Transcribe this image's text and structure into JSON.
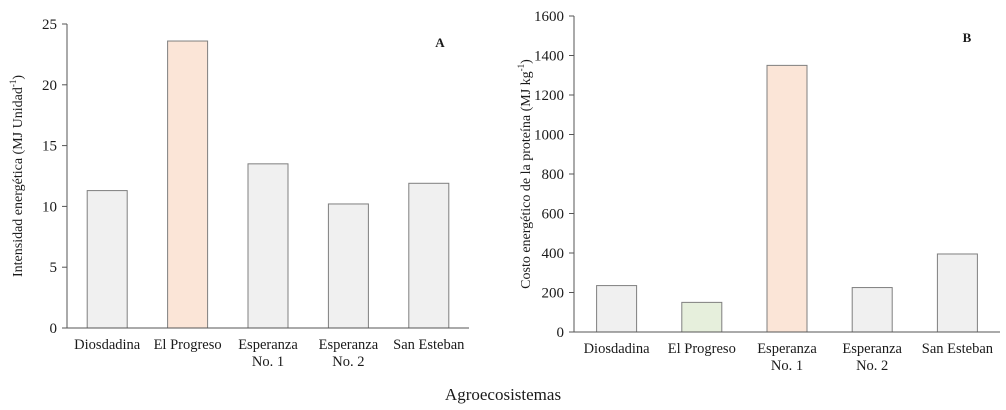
{
  "chart_data": [
    {
      "type": "bar",
      "panel_label": "A",
      "categories": [
        [
          "Diosdadina"
        ],
        [
          "El Progreso"
        ],
        [
          "Esperanza",
          "No. 1"
        ],
        [
          "Esperanza",
          "No. 2"
        ],
        [
          "San Esteban"
        ]
      ],
      "values": [
        11.3,
        23.6,
        13.5,
        10.2,
        11.9
      ],
      "bar_colors": [
        "#f0f0f0",
        "#fbe5d7",
        "#f0f0f0",
        "#f0f0f0",
        "#f0f0f0"
      ],
      "ylabel": "Intensidad energética (MJ Unidad-1)",
      "ylabel_parts": {
        "main": "Intensidad energética (MJ Unidad",
        "sup": "-1",
        "close": ")"
      },
      "ylim": [
        0,
        25
      ],
      "yticks": [
        0,
        5,
        10,
        15,
        20,
        25
      ],
      "grid": false
    },
    {
      "type": "bar",
      "panel_label": "B",
      "categories": [
        [
          "Diosdadina"
        ],
        [
          "El Progreso"
        ],
        [
          "Esperanza",
          "No. 1"
        ],
        [
          "Esperanza",
          "No. 2"
        ],
        [
          "San Esteban"
        ]
      ],
      "values": [
        235,
        150,
        1350,
        225,
        395
      ],
      "bar_colors": [
        "#f0f0f0",
        "#e6efdc",
        "#fbe5d7",
        "#f0f0f0",
        "#f0f0f0"
      ],
      "ylabel": "Costo energético de la proteína (MJ kg-1)",
      "ylabel_parts": {
        "main": "Costo energético de la proteína (MJ kg",
        "sup": "-1",
        "close": ")"
      },
      "ylim": [
        0,
        1600
      ],
      "yticks": [
        0,
        200,
        400,
        600,
        800,
        1000,
        1200,
        1400,
        1600
      ],
      "grid": false
    }
  ],
  "shared_xlabel": "Agroecosistemas",
  "colors": {
    "axis": "#555555",
    "bar_edge": "#7f7f7f",
    "text": "#1a1a1a"
  }
}
